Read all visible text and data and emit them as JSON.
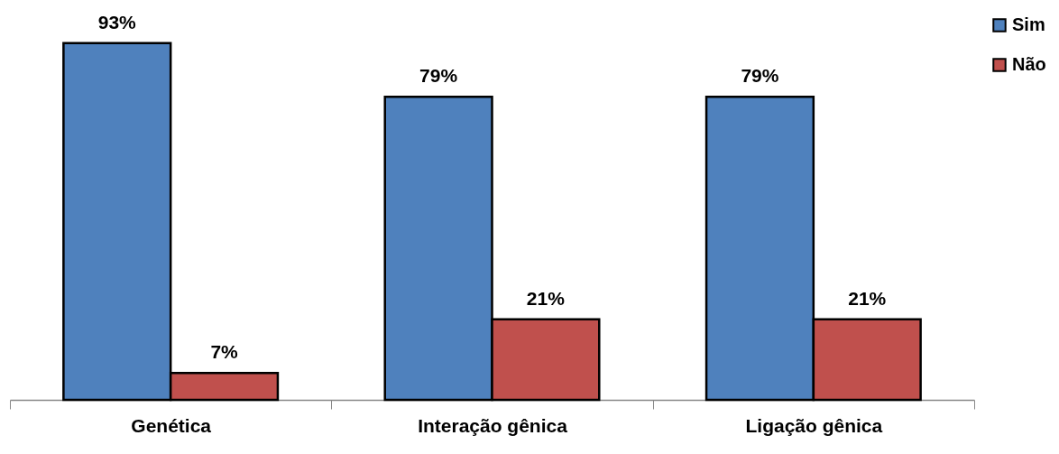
{
  "chart_data": {
    "type": "bar",
    "categories": [
      "Genética",
      "Interação gênica",
      "Ligação gênica"
    ],
    "series": [
      {
        "name": "Sim",
        "color": "#4f81bd",
        "values": [
          93,
          79,
          79
        ],
        "value_labels": [
          "93%",
          "79%",
          "79%"
        ]
      },
      {
        "name": "Não",
        "color": "#c0504d",
        "values": [
          7,
          21,
          21
        ],
        "value_labels": [
          "7%",
          "21%",
          "21%"
        ]
      }
    ],
    "tick_labels": "x",
    "grid": false,
    "legend": "right"
  }
}
